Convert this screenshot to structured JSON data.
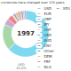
{
  "chart_data": {
    "type": "pie",
    "title": "currencies have changed over 120 years",
    "categories": [
      "USD",
      "EUR",
      "GBP",
      "JPY",
      "CHF",
      "CAD",
      "AUD",
      "CNY",
      "Other",
      "DEM",
      "FRF",
      "NLG",
      "XEU"
    ],
    "values": [
      62.0,
      18.0,
      4.5,
      3.5,
      1.0,
      1.5,
      1.5,
      1.0,
      1.0,
      0.5,
      1.5,
      1.0,
      1.0
    ],
    "colors": [
      "#7dd8f0",
      "#a8d8a8",
      "#c8a8d8",
      "#f08080",
      "#f0d0a0",
      "#80a8e0",
      "#e0c080",
      "#d09090",
      "#909090",
      "#d0d080",
      "#e080b0",
      "#80e0c0",
      "#b090e0"
    ],
    "annotations": [
      "1997",
      "USD\n62.0%"
    ],
    "legend": "right"
  }
}
